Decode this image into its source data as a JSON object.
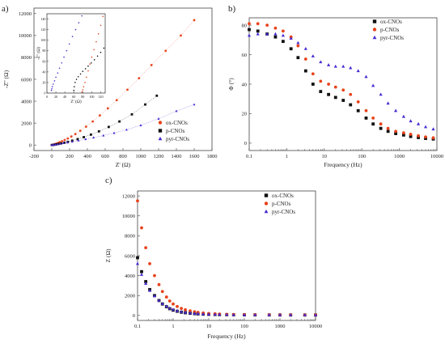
{
  "chart_data": [
    {
      "panel": "a)",
      "type": "scatter",
      "xlabel": "Z' (Ω)",
      "ylabel": "-Z'' (Ω)",
      "xlim": [
        -200,
        1800
      ],
      "ylim": [
        -500,
        12500
      ],
      "xticks": [
        -200,
        0,
        200,
        400,
        600,
        800,
        1000,
        1200,
        1400,
        1600,
        1800
      ],
      "yticks": [
        0,
        2000,
        4000,
        6000,
        8000,
        10000,
        12000
      ],
      "legend_position": "bottom-right",
      "series": [
        {
          "name": "ox-CNOs",
          "color": "#e8421a",
          "marker": "circle",
          "x": [
            0,
            10,
            20,
            35,
            50,
            70,
            90,
            115,
            145,
            180,
            220,
            265,
            320,
            385,
            460,
            540,
            630,
            730,
            850,
            980,
            1120,
            1280,
            1450,
            1600
          ],
          "y": [
            0,
            15,
            40,
            80,
            130,
            190,
            260,
            350,
            460,
            600,
            780,
            1000,
            1300,
            1680,
            2150,
            2700,
            3350,
            4100,
            5050,
            6100,
            7300,
            8600,
            10000,
            11400
          ]
        },
        {
          "name": "p-CNOs",
          "color": "#111111",
          "marker": "square",
          "x": [
            0,
            15,
            30,
            50,
            75,
            105,
            140,
            180,
            230,
            290,
            360,
            440,
            530,
            640,
            760,
            900,
            1050,
            1180
          ],
          "y": [
            0,
            10,
            30,
            60,
            100,
            150,
            210,
            290,
            400,
            540,
            720,
            950,
            1250,
            1650,
            2150,
            2800,
            3700,
            4500
          ]
        },
        {
          "name": "pyr-CNOs",
          "color": "#4a2ad0",
          "marker": "triangle",
          "x": [
            0,
            20,
            40,
            65,
            95,
            130,
            175,
            230,
            300,
            380,
            470,
            580,
            700,
            840,
            1000,
            1200,
            1400,
            1600
          ],
          "y": [
            0,
            20,
            45,
            80,
            120,
            170,
            230,
            310,
            410,
            530,
            680,
            870,
            1100,
            1400,
            1800,
            2400,
            3100,
            3700
          ]
        }
      ],
      "inset": {
        "xlabel": "Z' (Ω)",
        "ylabel": "-Z'' (Ω)",
        "xlim": [
          0,
          130
        ],
        "ylim": [
          0,
          150
        ],
        "xticks": [
          0,
          20,
          40,
          60,
          80,
          100,
          120
        ],
        "yticks": [
          0,
          20,
          40,
          60,
          80,
          100,
          120,
          140
        ],
        "series": [
          {
            "name": "ox-CNOs",
            "color": "#e8421a",
            "x": [
              78,
              80,
              82,
              85,
              88,
              92,
              96,
              100,
              105,
              110,
              115,
              120,
              125
            ],
            "y": [
              2,
              6,
              12,
              20,
              30,
              42,
              55,
              68,
              82,
              97,
              112,
              128,
              145
            ]
          },
          {
            "name": "p-CNOs",
            "color": "#111111",
            "x": [
              60,
              61,
              63,
              66,
              70,
              75,
              80,
              86,
              92,
              99,
              106,
              113,
              120,
              127
            ],
            "y": [
              5,
              12,
              20,
              26,
              31,
              36,
              41,
              46,
              51,
              57,
              63,
              70,
              77,
              85
            ]
          },
          {
            "name": "pyr-CNOs",
            "color": "#4a2ad0",
            "x": [
              10,
              11,
              12,
              14,
              17,
              20,
              24,
              28,
              33,
              38,
              44,
              50,
              57,
              64,
              71,
              78
            ],
            "y": [
              5,
              8,
              12,
              17,
              23,
              30,
              38,
              47,
              57,
              68,
              80,
              93,
              107,
              120,
              133,
              146
            ]
          }
        ]
      }
    },
    {
      "panel": "b)",
      "type": "scatter",
      "xlabel": "Frequency (Hz)",
      "ylabel": "Φ (°)",
      "xscale": "log",
      "xlim": [
        0.1,
        10000
      ],
      "ylim": [
        -5,
        85
      ],
      "xticks": [
        "0.1",
        "1",
        "10",
        "100",
        "1000",
        "10000"
      ],
      "yticks": [
        0,
        20,
        40,
        60,
        80
      ],
      "legend_position": "top-right",
      "series": [
        {
          "name": "ox-CNOs",
          "color": "#111111",
          "marker": "square",
          "x": [
            0.1,
            0.17,
            0.3,
            0.5,
            0.8,
            1.3,
            2,
            3.2,
            5,
            8,
            13,
            20,
            32,
            50,
            80,
            130,
            200,
            320,
            500,
            800,
            1300,
            2000,
            3200,
            5000,
            8000
          ],
          "y": [
            77,
            76,
            74,
            72,
            69,
            64,
            58,
            49,
            40,
            35,
            33,
            31,
            29,
            26,
            22,
            17,
            13,
            10,
            8,
            6.5,
            5.5,
            4.5,
            3.8,
            3.2,
            2.8
          ]
        },
        {
          "name": "p-CNOs",
          "color": "#e8421a",
          "marker": "circle",
          "x": [
            0.1,
            0.17,
            0.3,
            0.5,
            0.8,
            1.3,
            2,
            3.2,
            5,
            8,
            13,
            20,
            32,
            50,
            80,
            130,
            200,
            320,
            500,
            800,
            1300,
            2000,
            3200,
            5000,
            8000
          ],
          "y": [
            81,
            81,
            80,
            78,
            76,
            72,
            66,
            57,
            47,
            42,
            40,
            38,
            36,
            33,
            28,
            22,
            17,
            13,
            10,
            8,
            7,
            6,
            5,
            4.2,
            3.6
          ]
        },
        {
          "name": "pyr-CNOs",
          "color": "#4a2ad0",
          "marker": "triangle",
          "x": [
            0.1,
            0.17,
            0.3,
            0.5,
            0.8,
            1.3,
            2,
            3.2,
            5,
            8,
            13,
            20,
            32,
            50,
            80,
            130,
            200,
            320,
            500,
            800,
            1300,
            2000,
            3200,
            5000,
            8000
          ],
          "y": [
            73,
            74,
            74,
            74,
            73,
            71,
            68,
            64,
            59,
            55,
            53,
            52,
            52,
            51,
            49,
            45,
            39,
            33,
            27,
            22,
            18,
            15,
            13,
            11,
            9.5
          ]
        }
      ]
    },
    {
      "panel": "c)",
      "type": "scatter",
      "xlabel": "Frequency (Hz)",
      "ylabel": "Z (Ω)",
      "xscale": "log",
      "xlim": [
        0.1,
        10000
      ],
      "ylim": [
        -500,
        12500
      ],
      "xticks": [
        "0.1",
        "1",
        "10",
        "100",
        "1000",
        "10000"
      ],
      "yticks": [
        0,
        2000,
        4000,
        6000,
        8000,
        10000,
        12000
      ],
      "legend_position": "top-right",
      "series": [
        {
          "name": "ox-CNOs",
          "color": "#111111",
          "marker": "square",
          "x": [
            0.1,
            0.13,
            0.17,
            0.22,
            0.3,
            0.4,
            0.5,
            0.65,
            0.8,
            1,
            1.3,
            1.7,
            2.2,
            3,
            4,
            5,
            7,
            10,
            15,
            20,
            32,
            50,
            100,
            200,
            500,
            1000,
            2000,
            5000,
            10000
          ],
          "y": [
            5800,
            4400,
            3400,
            2600,
            2000,
            1500,
            1150,
            880,
            680,
            530,
            420,
            330,
            270,
            220,
            180,
            155,
            130,
            110,
            95,
            85,
            75,
            68,
            60,
            55,
            50,
            48,
            46,
            45,
            45
          ]
        },
        {
          "name": "p-CNOs",
          "color": "#e8421a",
          "marker": "circle",
          "x": [
            0.1,
            0.13,
            0.17,
            0.22,
            0.3,
            0.4,
            0.5,
            0.65,
            0.8,
            1,
            1.3,
            1.7,
            2.2,
            3,
            4,
            5,
            7,
            10,
            15,
            20,
            32,
            50,
            100,
            200,
            500,
            1000,
            2000,
            5000,
            10000
          ],
          "y": [
            11500,
            8800,
            6800,
            5200,
            4000,
            3100,
            2400,
            1850,
            1450,
            1150,
            900,
            710,
            570,
            460,
            370,
            310,
            250,
            200,
            165,
            140,
            115,
            100,
            85,
            75,
            65,
            60,
            58,
            56,
            55
          ]
        },
        {
          "name": "pyr-CNOs",
          "color": "#4a2ad0",
          "marker": "triangle",
          "x": [
            0.1,
            0.13,
            0.17,
            0.22,
            0.3,
            0.4,
            0.5,
            0.65,
            0.8,
            1,
            1.3,
            1.7,
            2.2,
            3,
            4,
            5,
            7,
            10,
            15,
            20,
            32,
            50,
            100,
            200,
            500,
            1000,
            2000,
            5000,
            10000
          ],
          "y": [
            5200,
            4100,
            3200,
            2500,
            1950,
            1500,
            1180,
            920,
            730,
            580,
            460,
            370,
            300,
            245,
            200,
            170,
            140,
            118,
            100,
            90,
            78,
            70,
            62,
            56,
            52,
            50,
            48,
            47,
            46
          ]
        }
      ]
    }
  ]
}
